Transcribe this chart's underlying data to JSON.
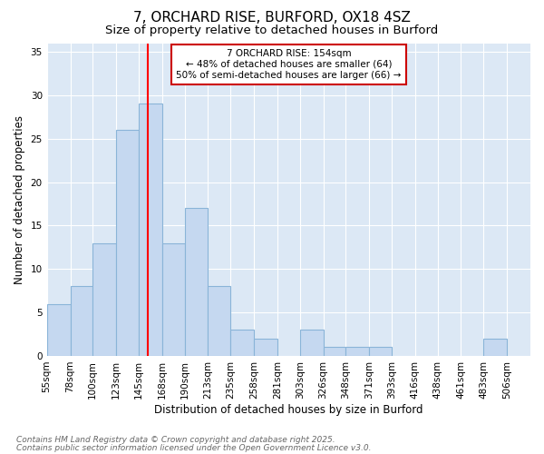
{
  "title1": "7, ORCHARD RISE, BURFORD, OX18 4SZ",
  "title2": "Size of property relative to detached houses in Burford",
  "xlabel": "Distribution of detached houses by size in Burford",
  "ylabel": "Number of detached properties",
  "bin_labels": [
    "55sqm",
    "78sqm",
    "100sqm",
    "123sqm",
    "145sqm",
    "168sqm",
    "190sqm",
    "213sqm",
    "235sqm",
    "258sqm",
    "281sqm",
    "303sqm",
    "326sqm",
    "348sqm",
    "371sqm",
    "393sqm",
    "416sqm",
    "438sqm",
    "461sqm",
    "483sqm",
    "506sqm"
  ],
  "bin_edges": [
    55,
    78,
    100,
    123,
    145,
    168,
    190,
    213,
    235,
    258,
    281,
    303,
    326,
    348,
    371,
    393,
    416,
    438,
    461,
    483,
    506
  ],
  "bar_heights": [
    6,
    8,
    13,
    26,
    29,
    13,
    17,
    8,
    3,
    2,
    0,
    3,
    1,
    1,
    1,
    0,
    0,
    0,
    0,
    2,
    0
  ],
  "bar_color": "#c5d8f0",
  "bar_edge_color": "#8ab4d8",
  "red_line_x": 154,
  "ylim": [
    0,
    36
  ],
  "yticks": [
    0,
    5,
    10,
    15,
    20,
    25,
    30,
    35
  ],
  "annotation_text": "7 ORCHARD RISE: 154sqm\n← 48% of detached houses are smaller (64)\n50% of semi-detached houses are larger (66) →",
  "annotation_box_color": "#ffffff",
  "annotation_box_edge": "#cc0000",
  "footnote1": "Contains HM Land Registry data © Crown copyright and database right 2025.",
  "footnote2": "Contains public sector information licensed under the Open Government Licence v3.0.",
  "fig_background": "#ffffff",
  "plot_background": "#dce8f5",
  "grid_color": "#ffffff",
  "title_fontsize": 11,
  "subtitle_fontsize": 9.5,
  "axis_label_fontsize": 8.5,
  "tick_fontsize": 7.5,
  "annot_fontsize": 7.5,
  "footnote_fontsize": 6.5
}
